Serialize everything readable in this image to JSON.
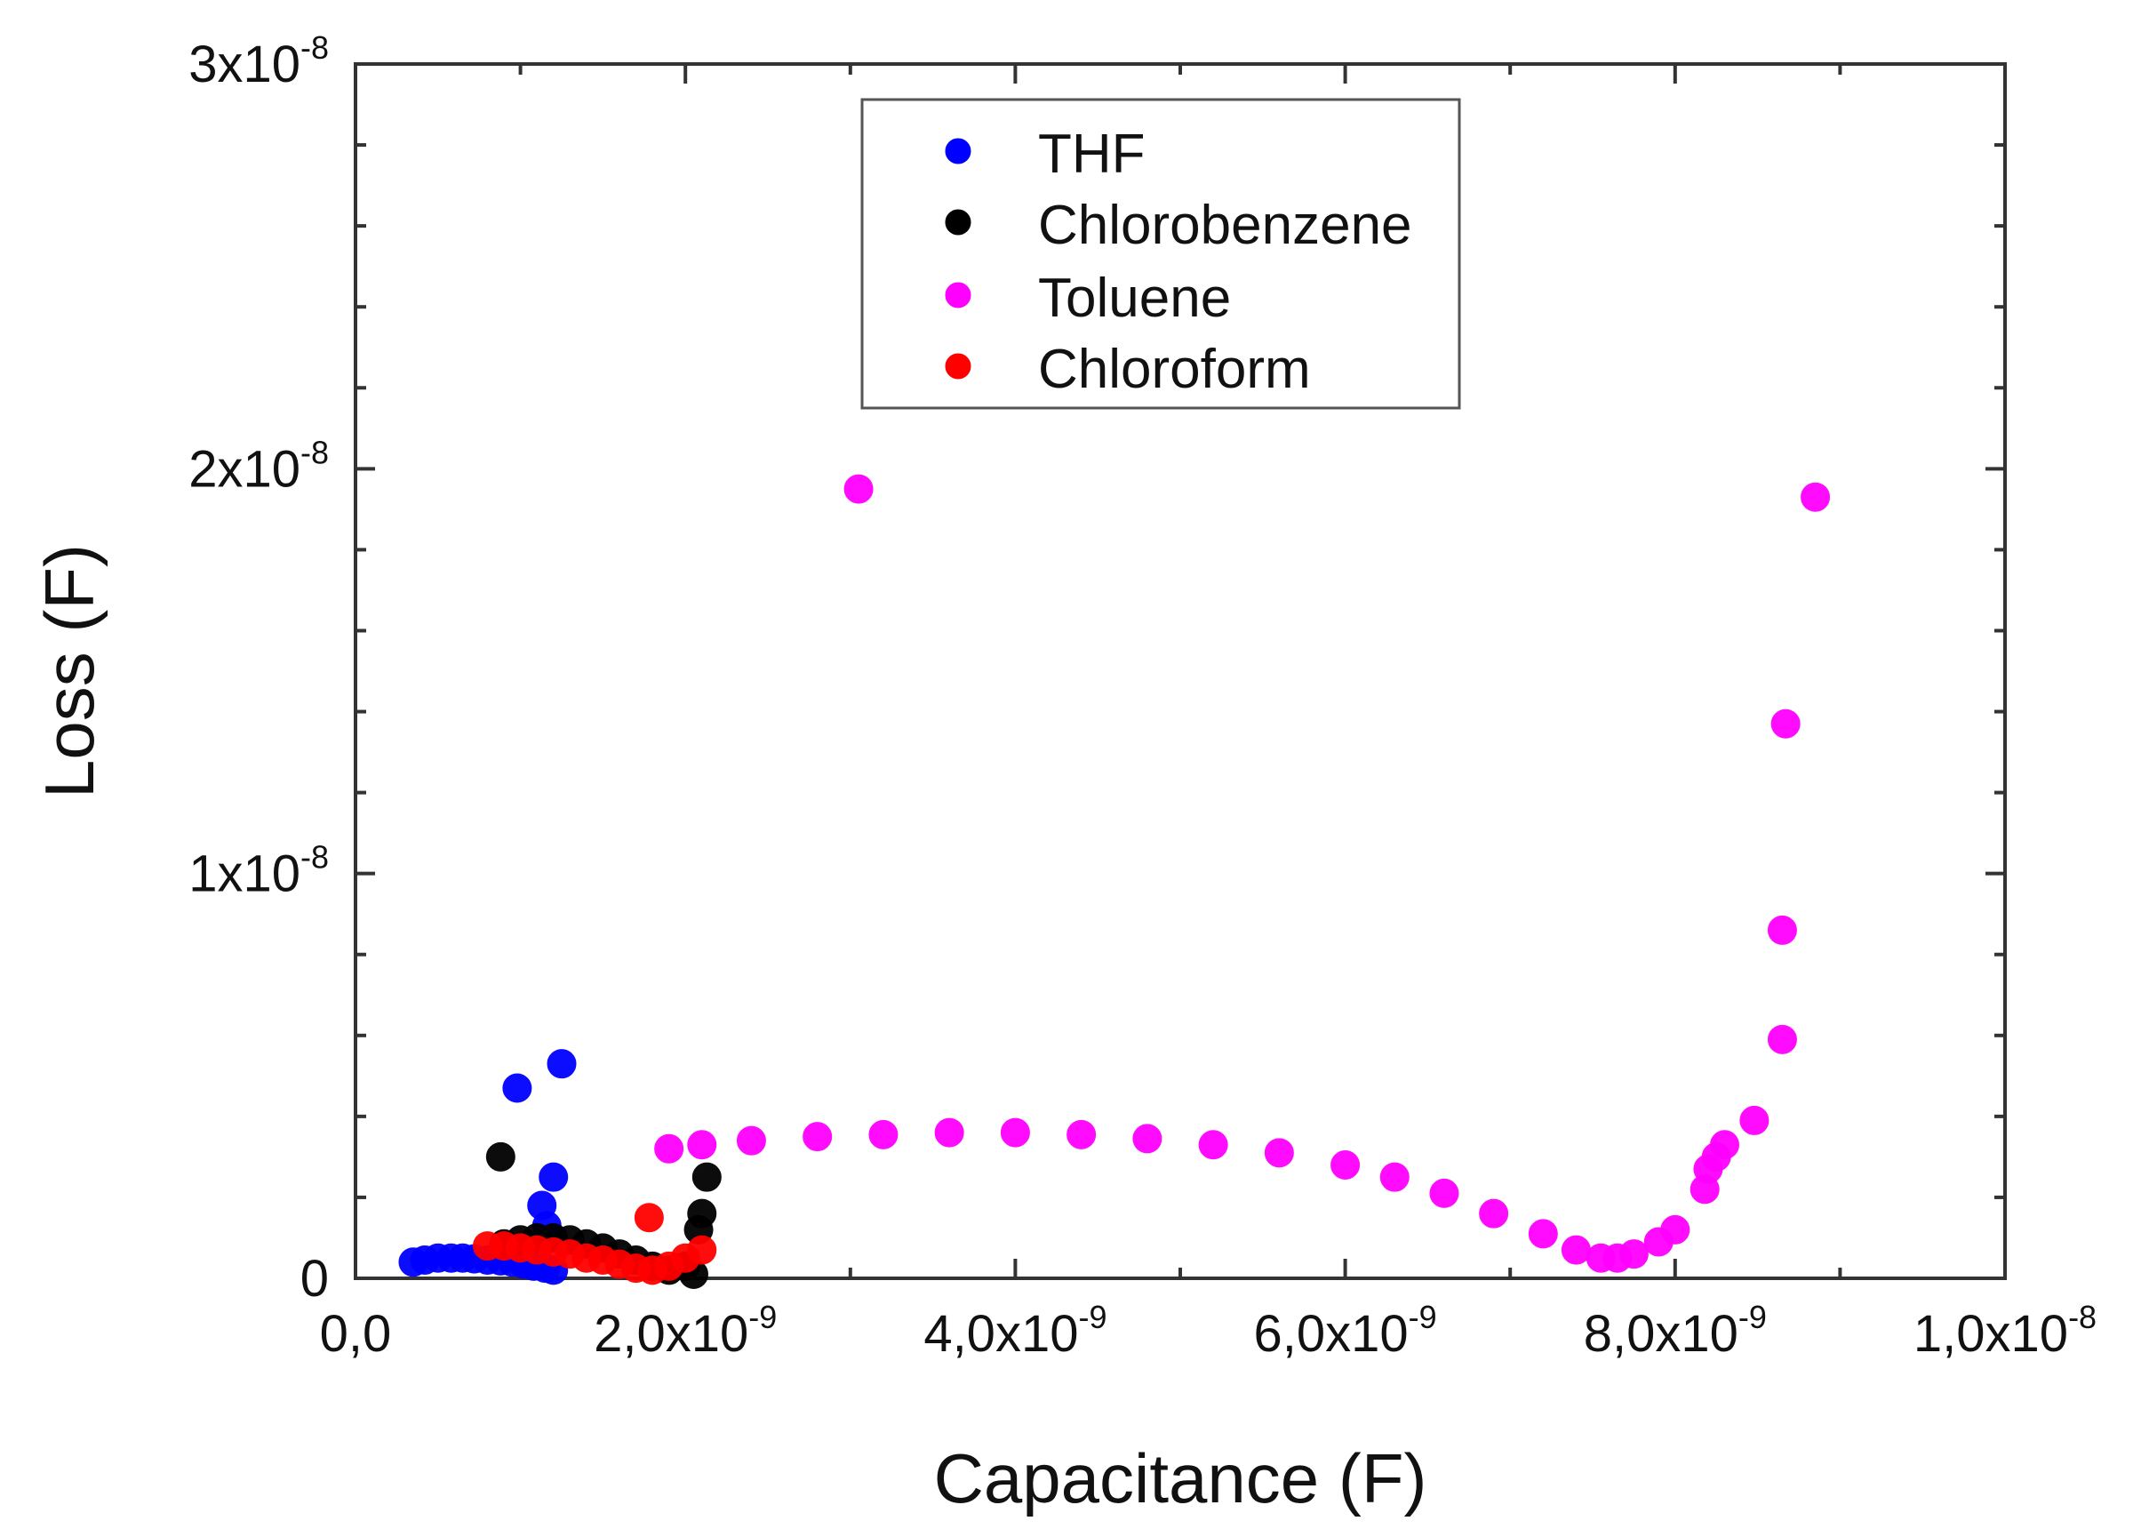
{
  "chart_data": {
    "type": "scatter",
    "xlabel": "Capacitance (F)",
    "ylabel": "Loss (F)",
    "xlim": [
      0,
      1e-08
    ],
    "ylim": [
      0,
      3e-08
    ],
    "x_ticks": [
      {
        "value": 0,
        "mantissa": "0,0",
        "exp": ""
      },
      {
        "value": 2e-09,
        "mantissa": "2,0x10",
        "exp": "-9"
      },
      {
        "value": 4e-09,
        "mantissa": "4,0x10",
        "exp": "-9"
      },
      {
        "value": 6e-09,
        "mantissa": "6,0x10",
        "exp": "-9"
      },
      {
        "value": 8e-09,
        "mantissa": "8,0x10",
        "exp": "-9"
      },
      {
        "value": 1e-08,
        "mantissa": "1,0x10",
        "exp": "-8"
      }
    ],
    "y_ticks": [
      {
        "value": 0,
        "mantissa": "0",
        "exp": ""
      },
      {
        "value": 1e-08,
        "mantissa": "1x10",
        "exp": "-8"
      },
      {
        "value": 2e-08,
        "mantissa": "2x10",
        "exp": "-8"
      },
      {
        "value": 3e-08,
        "mantissa": "3x10",
        "exp": "-8"
      }
    ],
    "legend_position": "top-center",
    "grid": false,
    "series": [
      {
        "name": "THF",
        "color": "#0000ff",
        "x": [
          3.5e-10,
          4.2e-10,
          5e-10,
          5.8e-10,
          6.5e-10,
          7.2e-10,
          8e-10,
          8.8e-10,
          9.5e-10,
          1.02e-09,
          1.08e-09,
          1.15e-09,
          1.2e-09,
          1.16e-09,
          1.13e-09,
          1.2e-09,
          9.8e-10,
          1.25e-09
        ],
        "y": [
          4e-10,
          4.5e-10,
          5e-10,
          5e-10,
          5e-10,
          4.8e-10,
          4.5e-10,
          4.3e-10,
          4e-10,
          3.5e-10,
          3e-10,
          2.5e-10,
          2e-10,
          1.3e-09,
          1.8e-09,
          2.5e-09,
          4.7e-09,
          5.3e-09
        ]
      },
      {
        "name": "Chlorobenzene",
        "color": "#000000",
        "x": [
          9e-10,
          1e-09,
          1.1e-09,
          1.2e-09,
          1.3e-09,
          1.4e-09,
          1.5e-09,
          1.6e-09,
          1.7e-09,
          1.8e-09,
          1.9e-09,
          2e-09,
          2.05e-09,
          2.08e-09,
          2.1e-09,
          2.13e-09,
          8.8e-10
        ],
        "y": [
          8.5e-10,
          9.5e-10,
          1e-09,
          1e-09,
          9.5e-10,
          8.5e-10,
          7.5e-10,
          6e-10,
          4.5e-10,
          3e-10,
          2e-10,
          3e-10,
          1e-10,
          1.2e-09,
          1.6e-09,
          2.5e-09,
          3e-09
        ]
      },
      {
        "name": "Toluene",
        "color": "#ff00ff",
        "x": [
          1.9e-09,
          2.1e-09,
          2.4e-09,
          2.8e-09,
          3.2e-09,
          3.6e-09,
          4e-09,
          4.4e-09,
          4.8e-09,
          5.2e-09,
          5.6e-09,
          6e-09,
          6.3e-09,
          6.6e-09,
          6.9e-09,
          7.2e-09,
          7.4e-09,
          7.55e-09,
          7.65e-09,
          7.75e-09,
          7.9e-09,
          8e-09,
          8.18e-09,
          8.2e-09,
          8.25e-09,
          8.3e-09,
          8.48e-09,
          8.65e-09,
          8.65e-09,
          8.67e-09,
          3.05e-09,
          8.85e-09
        ],
        "y": [
          3.2e-09,
          3.3e-09,
          3.4e-09,
          3.5e-09,
          3.55e-09,
          3.6e-09,
          3.6e-09,
          3.55e-09,
          3.45e-09,
          3.3e-09,
          3.1e-09,
          2.8e-09,
          2.5e-09,
          2.1e-09,
          1.6e-09,
          1.1e-09,
          7e-10,
          5e-10,
          5e-10,
          6e-10,
          9e-10,
          1.2e-09,
          2.2e-09,
          2.7e-09,
          3e-09,
          3.3e-09,
          3.9e-09,
          5.9e-09,
          8.6e-09,
          1.37e-08,
          1.95e-08,
          1.93e-08
        ]
      },
      {
        "name": "Chloroform",
        "color": "#ff0000",
        "x": [
          8e-10,
          9e-10,
          1e-09,
          1.1e-09,
          1.2e-09,
          1.3e-09,
          1.4e-09,
          1.5e-09,
          1.6e-09,
          1.7e-09,
          1.8e-09,
          1.9e-09,
          2e-09,
          2.1e-09,
          1.78e-09
        ],
        "y": [
          8e-10,
          8e-10,
          7.5e-10,
          7e-10,
          6.5e-10,
          6e-10,
          5e-10,
          4.5e-10,
          3.5e-10,
          2.5e-10,
          2e-10,
          3e-10,
          5e-10,
          7e-10,
          1.5e-09
        ]
      }
    ]
  }
}
